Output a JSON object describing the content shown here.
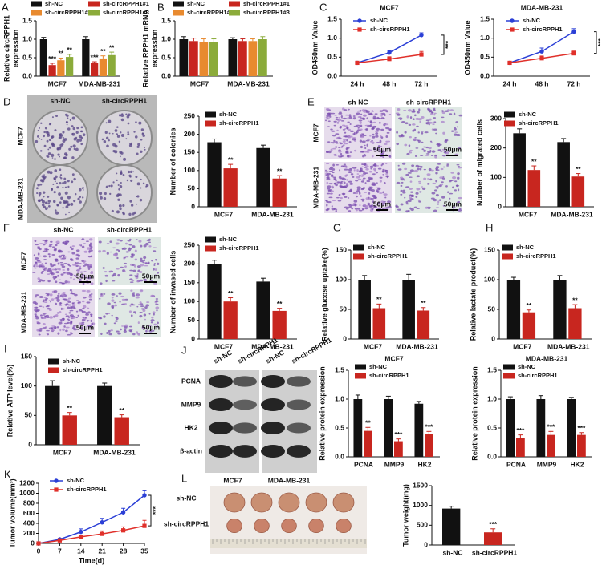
{
  "chart_data": [
    {
      "panel": "A",
      "type": "bar",
      "ylabel": [
        "Relative circRPPH1",
        "expression"
      ],
      "categories": [
        "MCF7",
        "MDA-MB-231"
      ],
      "series": [
        {
          "name": "sh-NC",
          "color": "#111111",
          "values": [
            1.0,
            1.0
          ],
          "errors": [
            0.05,
            0.07
          ]
        },
        {
          "name": "sh-circRPPH1#1",
          "color": "#c8261f",
          "values": [
            0.3,
            0.35
          ],
          "errors": [
            0.05,
            0.04
          ],
          "significance": [
            "***",
            "***"
          ]
        },
        {
          "name": "sh-circRPPH1#2",
          "color": "#e88a2f",
          "values": [
            0.43,
            0.48
          ],
          "errors": [
            0.06,
            0.07
          ],
          "significance": [
            "**",
            "**"
          ]
        },
        {
          "name": "sh-circRPPH1#3",
          "color": "#8bab3a",
          "values": [
            0.52,
            0.57
          ],
          "errors": [
            0.07,
            0.08
          ],
          "significance": [
            "**",
            "**"
          ]
        }
      ],
      "ylim": [
        0,
        1.5
      ],
      "yticks": [
        {
          "value": 0,
          "label": "0.0"
        },
        0.5,
        {
          "value": 1,
          "label": "1.0"
        },
        1.5
      ]
    },
    {
      "panel": "B",
      "type": "bar",
      "ylabel": [
        "Relative RPPH1 mRNA",
        "expression"
      ],
      "categories": [
        "MCF7",
        "MDA-MB-231"
      ],
      "series": [
        {
          "name": "sh-NC",
          "color": "#111111",
          "values": [
            1.0,
            1.0
          ],
          "errors": [
            0.07,
            0.04
          ]
        },
        {
          "name": "sh-circRPPH1#1",
          "color": "#c8261f",
          "values": [
            0.95,
            0.95
          ],
          "errors": [
            0.08,
            0.06
          ]
        },
        {
          "name": "sh-circRPPH1#2",
          "color": "#e88a2f",
          "values": [
            0.93,
            0.95
          ],
          "errors": [
            0.08,
            0.06
          ]
        },
        {
          "name": "sh-circRPPH1#3",
          "color": "#8bab3a",
          "values": [
            0.93,
            1.0
          ],
          "errors": [
            0.08,
            0.07
          ]
        }
      ],
      "ylim": [
        0,
        1.5
      ],
      "yticks": [
        {
          "value": 0,
          "label": "0.0"
        },
        0.5,
        {
          "value": 1,
          "label": "1.0"
        },
        1.5
      ]
    },
    {
      "panel": "C",
      "type": "line",
      "title": "MCF7",
      "ylabel": "OD450nm Value",
      "categories": [
        "24 h",
        "48 h",
        "72 h"
      ],
      "series": [
        {
          "name": "sh-NC",
          "color": "#2b3fd6",
          "marker": "circle",
          "values": [
            0.35,
            0.62,
            1.08
          ],
          "errors": [
            0.03,
            0.05,
            0.06
          ]
        },
        {
          "name": "sh-circRPPH1",
          "color": "#e0302a",
          "marker": "square",
          "values": [
            0.35,
            0.45,
            0.57
          ],
          "errors": [
            0.03,
            0.06,
            0.08
          ]
        }
      ],
      "ylim": [
        0,
        1.5
      ],
      "yticks": [
        {
          "value": 0,
          "label": "0.0"
        },
        0.5,
        {
          "value": 1,
          "label": "1.0"
        },
        1.5
      ],
      "annotation": "***"
    },
    {
      "type": "line",
      "title": "MDA-MB-231",
      "ylabel": "OD450nm Value",
      "categories": [
        "24 h",
        "48 h",
        "72 h"
      ],
      "series": [
        {
          "name": "sh-NC",
          "color": "#2b3fd6",
          "marker": "circle",
          "values": [
            0.35,
            0.65,
            1.17
          ],
          "errors": [
            0.03,
            0.09,
            0.08
          ]
        },
        {
          "name": "sh-circRPPH1",
          "color": "#e0302a",
          "marker": "square",
          "values": [
            0.35,
            0.47,
            0.6
          ],
          "errors": [
            0.03,
            0.06,
            0.06
          ]
        }
      ],
      "ylim": [
        0,
        1.5
      ],
      "yticks": [
        {
          "value": 0,
          "label": "0.0"
        },
        0.5,
        {
          "value": 1,
          "label": "1.0"
        },
        1.5
      ],
      "annotation": "***"
    },
    {
      "type": "bar",
      "ylabel": "Number of colonies",
      "categories": [
        "MCF7",
        "MDA-MB-231"
      ],
      "series": [
        {
          "name": "sh-NC",
          "color": "#111111",
          "values": [
            178,
            162
          ],
          "errors": [
            9,
            8
          ]
        },
        {
          "name": "sh-circRPPH1",
          "color": "#c8261f",
          "values": [
            106,
            78
          ],
          "errors": [
            11,
            8
          ],
          "significance": [
            "**",
            "**"
          ]
        }
      ],
      "ylim": [
        0,
        250
      ],
      "yticks": [
        0,
        50,
        100,
        150,
        200,
        250
      ]
    },
    {
      "type": "bar",
      "ylabel": "Number of migrated cells",
      "categories": [
        "MCF7",
        "MDA-MB-231"
      ],
      "series": [
        {
          "name": "sh-NC",
          "color": "#111111",
          "values": [
            250,
            220
          ],
          "errors": [
            15,
            12
          ]
        },
        {
          "name": "sh-circRPPH1",
          "color": "#c8261f",
          "values": [
            125,
            103
          ],
          "errors": [
            14,
            10
          ],
          "significance": [
            "**",
            "**"
          ]
        }
      ],
      "ylim": [
        0,
        300
      ],
      "yticks": [
        0,
        100,
        200,
        300
      ]
    },
    {
      "type": "bar",
      "ylabel": "Number of invased cells",
      "categories": [
        "MCF7",
        "MDA-MB-231"
      ],
      "series": [
        {
          "name": "sh-NC",
          "color": "#111111",
          "values": [
            200,
            153
          ],
          "errors": [
            10,
            9
          ]
        },
        {
          "name": "sh-circRPPH1",
          "color": "#c8261f",
          "values": [
            100,
            75
          ],
          "errors": [
            10,
            7
          ],
          "significance": [
            "**",
            "**"
          ]
        }
      ],
      "ylim": [
        0,
        250
      ],
      "yticks": [
        0,
        50,
        100,
        150,
        200,
        250
      ]
    },
    {
      "panel": "G",
      "type": "bar",
      "ylabel": "Relative glucose uptake(%)",
      "categories": [
        "MCF7",
        "MDA-MB-231"
      ],
      "series": [
        {
          "name": "sh-NC",
          "color": "#111111",
          "values": [
            100,
            100
          ],
          "errors": [
            7,
            9
          ]
        },
        {
          "name": "sh-circRPPH1",
          "color": "#c8261f",
          "values": [
            52,
            48
          ],
          "errors": [
            7,
            5
          ],
          "significance": [
            "**",
            "**"
          ]
        }
      ],
      "ylim": [
        0,
        150
      ],
      "yticks": [
        0,
        50,
        100,
        150
      ]
    },
    {
      "panel": "H",
      "type": "bar",
      "ylabel": "Relative lactate product(%)",
      "categories": [
        "MCF7",
        "MDA-MB-231"
      ],
      "series": [
        {
          "name": "sh-NC",
          "color": "#111111",
          "values": [
            100,
            100
          ],
          "errors": [
            4,
            7
          ]
        },
        {
          "name": "sh-circRPPH1",
          "color": "#c8261f",
          "values": [
            45,
            52
          ],
          "errors": [
            4,
            6
          ],
          "significance": [
            "**",
            "**"
          ]
        }
      ],
      "ylim": [
        0,
        150
      ],
      "yticks": [
        0,
        50,
        100,
        150
      ]
    },
    {
      "panel": "I",
      "type": "bar",
      "ylabel": "Relative ATP level(%)",
      "categories": [
        "MCF7",
        "MDA-MB-231"
      ],
      "series": [
        {
          "name": "sh-NC",
          "color": "#111111",
          "values": [
            100,
            100
          ],
          "errors": [
            9,
            5
          ]
        },
        {
          "name": "sh-circRPPH1",
          "color": "#c8261f",
          "values": [
            50,
            47
          ],
          "errors": [
            5,
            4
          ],
          "significance": [
            "**",
            "**"
          ]
        }
      ],
      "ylim": [
        0,
        150
      ],
      "yticks": [
        0,
        50,
        100,
        150
      ]
    },
    {
      "type": "bar",
      "title": "MCF7",
      "ylabel": "Relative protein expression",
      "categories": [
        "PCNA",
        "MMP9",
        "HK2"
      ],
      "series": [
        {
          "name": "sh-NC",
          "color": "#111111",
          "values": [
            1.0,
            1.0,
            0.92
          ],
          "errors": [
            0.07,
            0.05,
            0.04
          ]
        },
        {
          "name": "sh-circRPPH1",
          "color": "#c8261f",
          "values": [
            0.45,
            0.27,
            0.4
          ],
          "errors": [
            0.06,
            0.04,
            0.04
          ],
          "significance": [
            "**",
            "***",
            "***"
          ]
        }
      ],
      "ylim": [
        0,
        1.5
      ],
      "yticks": [
        {
          "value": 0,
          "label": "0.0"
        },
        0.5,
        {
          "value": 1,
          "label": "1.0"
        },
        1.5
      ]
    },
    {
      "type": "bar",
      "title": "MDA-MB-231",
      "ylabel": "Relative protein expression",
      "categories": [
        "PCNA",
        "MMP9",
        "HK2"
      ],
      "series": [
        {
          "name": "sh-NC",
          "color": "#111111",
          "values": [
            1.0,
            1.0,
            1.0
          ],
          "errors": [
            0.04,
            0.06,
            0.03
          ]
        },
        {
          "name": "sh-circRPPH1",
          "color": "#c8261f",
          "values": [
            0.33,
            0.38,
            0.38
          ],
          "errors": [
            0.05,
            0.06,
            0.04
          ],
          "significance": [
            "***",
            "***",
            "***"
          ]
        }
      ],
      "ylim": [
        0,
        1.5
      ],
      "yticks": [
        {
          "value": 0,
          "label": "0.0"
        },
        0.5,
        {
          "value": 1,
          "label": "1.0"
        },
        1.5
      ]
    },
    {
      "panel": "K",
      "type": "line",
      "ylabel": "Tumor volume(mm³)",
      "xlabel": "Time(d)",
      "x": [
        0,
        7,
        14,
        21,
        28,
        35
      ],
      "series": [
        {
          "name": "sh-NC",
          "color": "#2b3fd6",
          "marker": "circle",
          "values": [
            0,
            80,
            230,
            420,
            620,
            960
          ],
          "errors": [
            0,
            20,
            60,
            80,
            80,
            90
          ]
        },
        {
          "name": "sh-circRPPH1",
          "color": "#e0302a",
          "marker": "square",
          "values": [
            0,
            60,
            130,
            190,
            260,
            350
          ],
          "errors": [
            0,
            15,
            30,
            60,
            70,
            110
          ]
        }
      ],
      "xlim": [
        0,
        35
      ],
      "xticks": [
        0,
        7,
        14,
        21,
        28,
        35
      ],
      "ylim": [
        0,
        1200
      ],
      "yticks": [
        0,
        200,
        400,
        600,
        800,
        1000,
        1200
      ],
      "annotation": "***"
    },
    {
      "type": "bar",
      "ylabel": "Tumor weight(mg)",
      "categories": [
        "sh-NC",
        "sh-circRPPH1"
      ],
      "series": [
        {
          "colors": [
            "#111111",
            "#c8261f"
          ],
          "values": [
            920,
            320
          ],
          "errors": [
            60,
            90
          ],
          "significance": [
            null,
            "***"
          ]
        }
      ],
      "ylim": [
        0,
        1500
      ],
      "yticks": [
        0,
        500,
        1000,
        1500
      ]
    }
  ],
  "image_panels": {
    "D": {
      "letter": "D",
      "columns": [
        "sh-NC",
        "sh-circRPPH1"
      ],
      "rows": [
        "MCF7",
        "MDA-MB-231"
      ]
    },
    "E": {
      "letter": "E",
      "columns": [
        "sh-NC",
        "sh-circRPPH1"
      ],
      "rows": [
        "MCF7",
        "MDA-MB-231"
      ],
      "scale_bar": "50μm"
    },
    "F": {
      "letter": "F",
      "columns": [
        "sh-NC",
        "sh-circRPPH1"
      ],
      "rows": [
        "MCF7",
        "MDA-MB-231"
      ],
      "scale_bar": "50μm"
    },
    "J": {
      "letter": "J",
      "columns": [
        "sh-NC",
        "sh-circRPPH1",
        "sh-NC",
        "sh-circRPPH1"
      ],
      "rows": [
        "PCNA",
        "MMP9",
        "HK2",
        "β-actin"
      ],
      "groups": [
        "MCF7",
        "MDA-MB-231"
      ]
    },
    "L": {
      "letter": "L",
      "rows": [
        "sh-NC",
        "sh-circRPPH1"
      ]
    }
  }
}
